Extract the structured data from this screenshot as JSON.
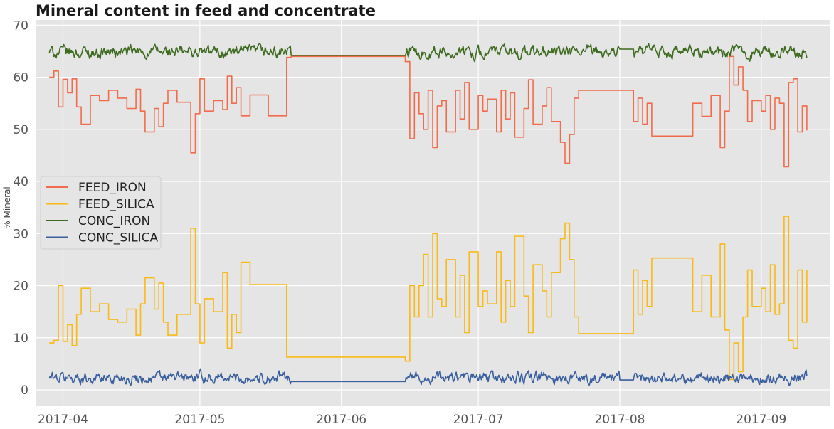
{
  "chart_data": {
    "type": "line",
    "title": "Mineral content in feed and concentrate",
    "xlabel": "",
    "ylabel": "% Mineral",
    "xlim": [
      "2017-03-26",
      "2017-09-16"
    ],
    "ylim": [
      -3,
      71
    ],
    "x_ticks": [
      "2017-04",
      "2017-05",
      "2017-06",
      "2017-07",
      "2017-08",
      "2017-09"
    ],
    "x_tick_dates": [
      "2017-04-01",
      "2017-05-01",
      "2017-06-01",
      "2017-07-01",
      "2017-08-01",
      "2017-09-01"
    ],
    "y_ticks": [
      0,
      10,
      20,
      30,
      40,
      50,
      60,
      70
    ],
    "grid": true,
    "legend_position": "center-left",
    "series": [
      {
        "name": "FEED_IRON",
        "color": "#f26b4a",
        "style": "step",
        "points": [
          [
            "2017-03-29",
            60.0
          ],
          [
            "2017-03-30",
            61.2
          ],
          [
            "2017-03-31",
            54.3
          ],
          [
            "2017-04-01",
            59.6
          ],
          [
            "2017-04-02",
            57.0
          ],
          [
            "2017-04-03",
            59.7
          ],
          [
            "2017-04-04",
            54.3
          ],
          [
            "2017-04-05",
            51.0
          ],
          [
            "2017-04-07",
            56.5
          ],
          [
            "2017-04-09",
            55.5
          ],
          [
            "2017-04-11",
            57.5
          ],
          [
            "2017-04-13",
            56.0
          ],
          [
            "2017-04-15",
            54.0
          ],
          [
            "2017-04-17",
            57.7
          ],
          [
            "2017-04-18",
            53.5
          ],
          [
            "2017-04-19",
            49.5
          ],
          [
            "2017-04-21",
            54.0
          ],
          [
            "2017-04-22",
            50.5
          ],
          [
            "2017-04-23",
            55.0
          ],
          [
            "2017-04-24",
            57.5
          ],
          [
            "2017-04-26",
            55.2
          ],
          [
            "2017-04-29",
            45.5
          ],
          [
            "2017-04-30",
            53.0
          ],
          [
            "2017-05-01",
            59.7
          ],
          [
            "2017-05-02",
            53.5
          ],
          [
            "2017-05-04",
            55.5
          ],
          [
            "2017-05-06",
            53.8
          ],
          [
            "2017-05-07",
            60.2
          ],
          [
            "2017-05-08",
            55.0
          ],
          [
            "2017-05-09",
            58.0
          ],
          [
            "2017-05-10",
            52.6
          ],
          [
            "2017-05-12",
            56.6
          ],
          [
            "2017-05-16",
            52.6
          ],
          [
            "2017-05-20",
            63.8
          ],
          [
            "2017-05-21",
            64.0
          ],
          [
            "2017-06-15",
            63.0
          ],
          [
            "2017-06-16",
            48.2
          ],
          [
            "2017-06-17",
            57.0
          ],
          [
            "2017-06-18",
            53.0
          ],
          [
            "2017-06-19",
            50.0
          ],
          [
            "2017-06-20",
            57.5
          ],
          [
            "2017-06-21",
            46.5
          ],
          [
            "2017-06-22",
            54.5
          ],
          [
            "2017-06-23",
            55.5
          ],
          [
            "2017-06-24",
            49.5
          ],
          [
            "2017-06-26",
            57.5
          ],
          [
            "2017-06-27",
            52.0
          ],
          [
            "2017-06-28",
            59.0
          ],
          [
            "2017-06-29",
            50.0
          ],
          [
            "2017-07-01",
            56.5
          ],
          [
            "2017-07-02",
            53.5
          ],
          [
            "2017-07-03",
            55.8
          ],
          [
            "2017-07-05",
            49.5
          ],
          [
            "2017-07-06",
            57.5
          ],
          [
            "2017-07-07",
            52.0
          ],
          [
            "2017-07-08",
            57.0
          ],
          [
            "2017-07-09",
            48.5
          ],
          [
            "2017-07-11",
            54.0
          ],
          [
            "2017-07-12",
            59.5
          ],
          [
            "2017-07-13",
            51.0
          ],
          [
            "2017-07-15",
            54.5
          ],
          [
            "2017-07-16",
            58.0
          ],
          [
            "2017-07-17",
            51.5
          ],
          [
            "2017-07-19",
            47.5
          ],
          [
            "2017-07-20",
            43.5
          ],
          [
            "2017-07-21",
            49.0
          ],
          [
            "2017-07-22",
            56.0
          ],
          [
            "2017-07-23",
            57.5
          ],
          [
            "2017-08-03",
            57.5
          ],
          [
            "2017-08-04",
            51.5
          ],
          [
            "2017-08-05",
            56.0
          ],
          [
            "2017-08-06",
            51.0
          ],
          [
            "2017-08-07",
            55.0
          ],
          [
            "2017-08-08",
            48.7
          ],
          [
            "2017-08-16",
            48.7
          ],
          [
            "2017-08-17",
            55.0
          ],
          [
            "2017-08-19",
            52.5
          ],
          [
            "2017-08-21",
            56.5
          ],
          [
            "2017-08-23",
            46.5
          ],
          [
            "2017-08-24",
            53.5
          ],
          [
            "2017-08-25",
            64.0
          ],
          [
            "2017-08-26",
            58.5
          ],
          [
            "2017-08-27",
            62.0
          ],
          [
            "2017-08-28",
            57.5
          ],
          [
            "2017-08-29",
            51.5
          ],
          [
            "2017-08-30",
            55.5
          ],
          [
            "2017-09-01",
            53.5
          ],
          [
            "2017-09-02",
            56.5
          ],
          [
            "2017-09-03",
            50.0
          ],
          [
            "2017-09-04",
            56.0
          ],
          [
            "2017-09-05",
            55.0
          ],
          [
            "2017-09-06",
            42.8
          ],
          [
            "2017-09-07",
            59.0
          ],
          [
            "2017-09-08",
            59.7
          ],
          [
            "2017-09-09",
            49.5
          ],
          [
            "2017-09-10",
            54.5
          ],
          [
            "2017-09-11",
            49.8
          ]
        ]
      },
      {
        "name": "FEED_SILICA",
        "color": "#fbb913",
        "style": "step",
        "points": [
          [
            "2017-03-29",
            9.0
          ],
          [
            "2017-03-30",
            9.5
          ],
          [
            "2017-03-31",
            20.0
          ],
          [
            "2017-04-01",
            9.3
          ],
          [
            "2017-04-02",
            12.5
          ],
          [
            "2017-04-03",
            8.5
          ],
          [
            "2017-04-04",
            14.5
          ],
          [
            "2017-04-05",
            19.5
          ],
          [
            "2017-04-07",
            15.0
          ],
          [
            "2017-04-09",
            16.5
          ],
          [
            "2017-04-11",
            13.5
          ],
          [
            "2017-04-13",
            13.0
          ],
          [
            "2017-04-15",
            15.5
          ],
          [
            "2017-04-17",
            10.5
          ],
          [
            "2017-04-18",
            16.5
          ],
          [
            "2017-04-19",
            21.5
          ],
          [
            "2017-04-21",
            15.5
          ],
          [
            "2017-04-22",
            20.5
          ],
          [
            "2017-04-23",
            13.0
          ],
          [
            "2017-04-24",
            10.5
          ],
          [
            "2017-04-26",
            14.5
          ],
          [
            "2017-04-29",
            31.0
          ],
          [
            "2017-04-30",
            16.5
          ],
          [
            "2017-05-01",
            9.0
          ],
          [
            "2017-05-02",
            17.5
          ],
          [
            "2017-05-04",
            15.0
          ],
          [
            "2017-05-06",
            22.5
          ],
          [
            "2017-05-07",
            8.0
          ],
          [
            "2017-05-08",
            14.5
          ],
          [
            "2017-05-09",
            11.0
          ],
          [
            "2017-05-10",
            24.5
          ],
          [
            "2017-05-12",
            20.2
          ],
          [
            "2017-05-16",
            20.2
          ],
          [
            "2017-05-20",
            6.3
          ],
          [
            "2017-05-21",
            6.3
          ],
          [
            "2017-06-15",
            5.5
          ],
          [
            "2017-06-16",
            20.0
          ],
          [
            "2017-06-17",
            14.0
          ],
          [
            "2017-06-18",
            20.0
          ],
          [
            "2017-06-19",
            26.0
          ],
          [
            "2017-06-20",
            14.0
          ],
          [
            "2017-06-21",
            30.0
          ],
          [
            "2017-06-22",
            17.5
          ],
          [
            "2017-06-23",
            16.0
          ],
          [
            "2017-06-24",
            25.0
          ],
          [
            "2017-06-26",
            14.0
          ],
          [
            "2017-06-27",
            22.0
          ],
          [
            "2017-06-28",
            11.0
          ],
          [
            "2017-06-29",
            26.5
          ],
          [
            "2017-07-01",
            16.0
          ],
          [
            "2017-07-02",
            19.0
          ],
          [
            "2017-07-03",
            16.5
          ],
          [
            "2017-07-05",
            26.5
          ],
          [
            "2017-07-06",
            13.0
          ],
          [
            "2017-07-07",
            21.0
          ],
          [
            "2017-07-08",
            16.0
          ],
          [
            "2017-07-09",
            29.5
          ],
          [
            "2017-07-11",
            18.0
          ],
          [
            "2017-07-12",
            11.0
          ],
          [
            "2017-07-13",
            24.0
          ],
          [
            "2017-07-15",
            19.0
          ],
          [
            "2017-07-16",
            14.0
          ],
          [
            "2017-07-17",
            22.5
          ],
          [
            "2017-07-19",
            29.0
          ],
          [
            "2017-07-20",
            32.0
          ],
          [
            "2017-07-21",
            25.0
          ],
          [
            "2017-07-22",
            14.0
          ],
          [
            "2017-07-23",
            10.8
          ],
          [
            "2017-08-03",
            10.8
          ],
          [
            "2017-08-04",
            23.0
          ],
          [
            "2017-08-05",
            14.5
          ],
          [
            "2017-08-06",
            21.0
          ],
          [
            "2017-08-07",
            16.0
          ],
          [
            "2017-08-08",
            25.3
          ],
          [
            "2017-08-16",
            25.3
          ],
          [
            "2017-08-17",
            15.0
          ],
          [
            "2017-08-19",
            22.0
          ],
          [
            "2017-08-21",
            14.0
          ],
          [
            "2017-08-23",
            28.0
          ],
          [
            "2017-08-24",
            11.5
          ],
          [
            "2017-08-25",
            2.0
          ],
          [
            "2017-08-26",
            9.0
          ],
          [
            "2017-08-27",
            3.5
          ],
          [
            "2017-08-28",
            14.0
          ],
          [
            "2017-08-29",
            23.0
          ],
          [
            "2017-08-30",
            16.0
          ],
          [
            "2017-09-01",
            19.5
          ],
          [
            "2017-09-02",
            15.0
          ],
          [
            "2017-09-03",
            24.0
          ],
          [
            "2017-09-04",
            14.5
          ],
          [
            "2017-09-05",
            16.5
          ],
          [
            "2017-09-06",
            33.3
          ],
          [
            "2017-09-07",
            9.5
          ],
          [
            "2017-09-08",
            8.0
          ],
          [
            "2017-09-09",
            23.0
          ],
          [
            "2017-09-10",
            13.0
          ],
          [
            "2017-09-11",
            23.0
          ]
        ]
      },
      {
        "name": "CONC_IRON",
        "color": "#3d6b1f",
        "style": "noisy",
        "start": "2017-03-29",
        "end": "2017-09-11",
        "baseline": 64.8,
        "band": [
          62.3,
          67.3
        ],
        "flat_segments": [
          [
            "2017-05-21",
            "2017-06-15",
            64.2
          ],
          [
            "2017-08-01",
            "2017-08-04",
            65.4
          ]
        ]
      },
      {
        "name": "CONC_SILICA",
        "color": "#3a5f9e",
        "style": "noisy",
        "start": "2017-03-29",
        "end": "2017-09-11",
        "baseline": 2.3,
        "band": [
          0.8,
          5.5
        ],
        "flat_segments": [
          [
            "2017-05-21",
            "2017-06-15",
            1.6
          ],
          [
            "2017-08-01",
            "2017-08-04",
            1.9
          ]
        ]
      }
    ]
  }
}
